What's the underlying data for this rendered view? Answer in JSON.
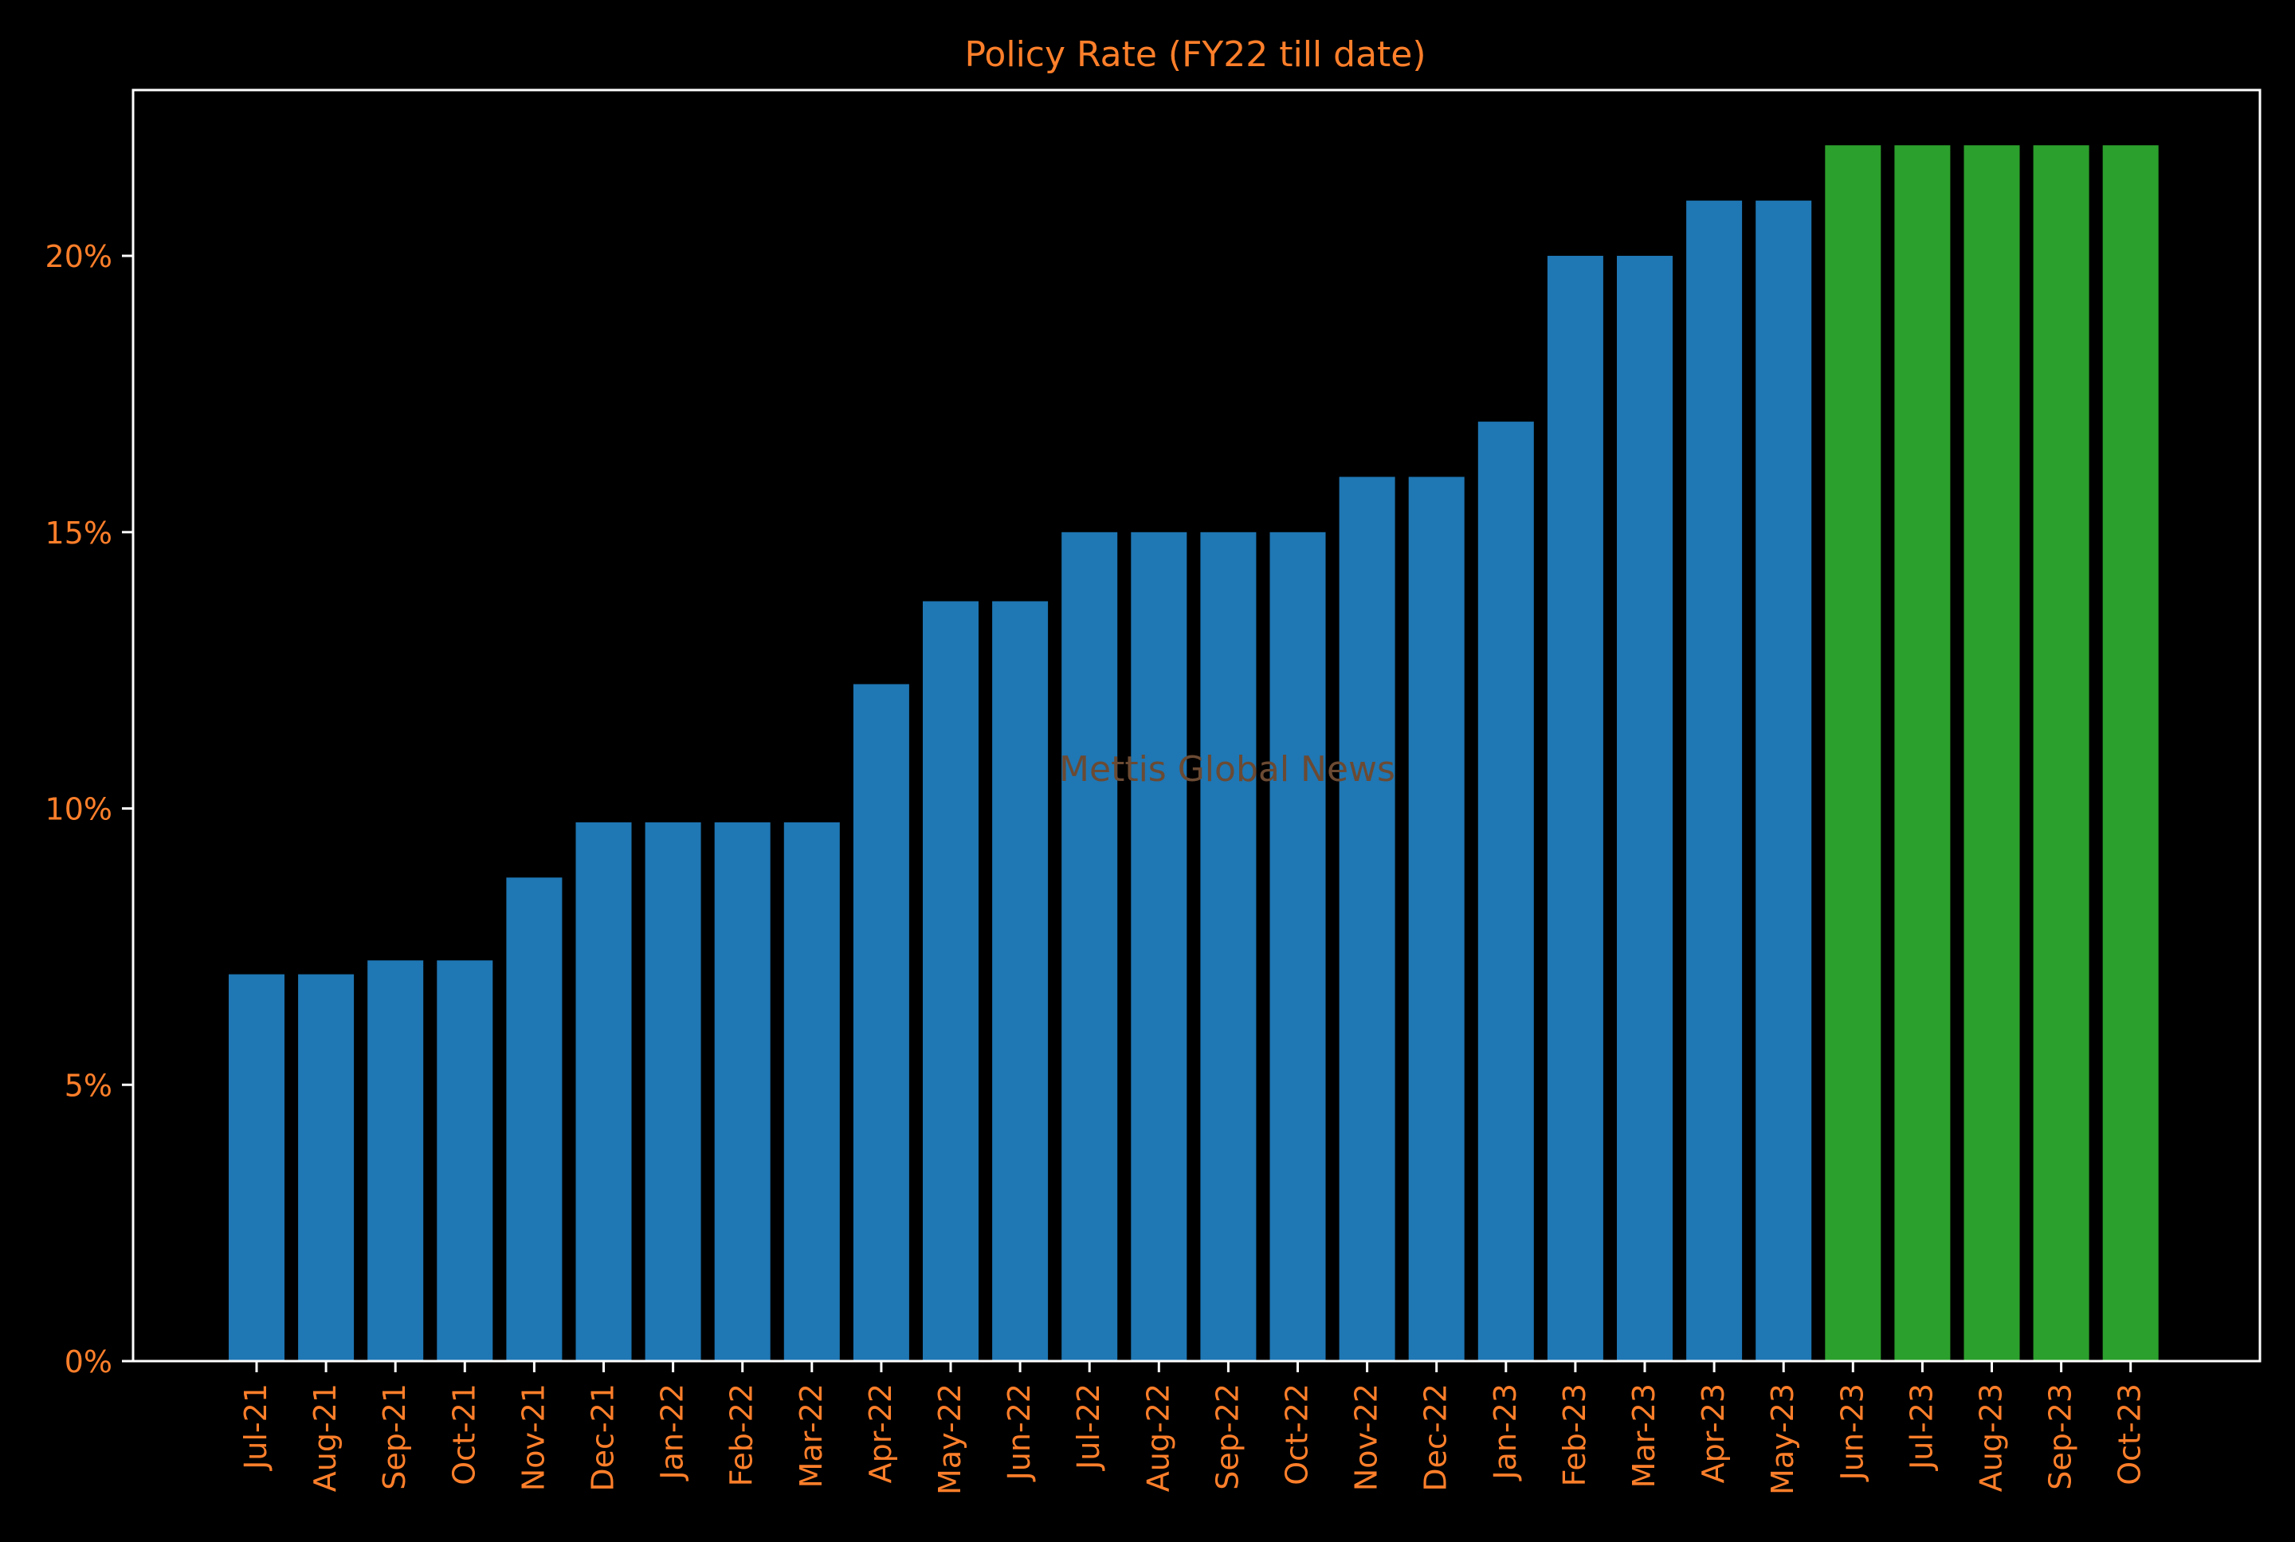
{
  "chart_data": {
    "type": "bar",
    "title": "Policy Rate (FY22 till date)",
    "xlabel": "",
    "ylabel": "",
    "watermark": "Mettis Global News",
    "categories": [
      "Jul-21",
      "Aug-21",
      "Sep-21",
      "Oct-21",
      "Nov-21",
      "Dec-21",
      "Jan-22",
      "Feb-22",
      "Mar-22",
      "Apr-22",
      "May-22",
      "Jun-22",
      "Jul-22",
      "Aug-22",
      "Sep-22",
      "Oct-22",
      "Nov-22",
      "Dec-22",
      "Jan-23",
      "Feb-23",
      "Mar-23",
      "Apr-23",
      "May-23",
      "Jun-23",
      "Jul-23",
      "Aug-23",
      "Sep-23",
      "Oct-23"
    ],
    "values": [
      7,
      7,
      7.25,
      7.25,
      8.75,
      9.75,
      9.75,
      9.75,
      9.75,
      12.25,
      13.75,
      13.75,
      15,
      15,
      15,
      15,
      16,
      16,
      17,
      20,
      20,
      21,
      21,
      22,
      22,
      22,
      22,
      22
    ],
    "bar_colors": [
      "#1f77b4",
      "#1f77b4",
      "#1f77b4",
      "#1f77b4",
      "#1f77b4",
      "#1f77b4",
      "#1f77b4",
      "#1f77b4",
      "#1f77b4",
      "#1f77b4",
      "#1f77b4",
      "#1f77b4",
      "#1f77b4",
      "#1f77b4",
      "#1f77b4",
      "#1f77b4",
      "#1f77b4",
      "#1f77b4",
      "#1f77b4",
      "#1f77b4",
      "#1f77b4",
      "#1f77b4",
      "#1f77b4",
      "#2ca02c",
      "#2ca02c",
      "#2ca02c",
      "#2ca02c",
      "#2ca02c"
    ],
    "ylim": [
      0,
      23
    ],
    "yticks": [
      0,
      5,
      10,
      15,
      20
    ],
    "ytick_labels": [
      "0%",
      "5%",
      "10%",
      "15%",
      "20%"
    ],
    "grid": false,
    "colors": {
      "background": "#000000",
      "text": "#ff7f2a",
      "axes": "#ffffff",
      "watermark": "#6b4a33"
    }
  }
}
